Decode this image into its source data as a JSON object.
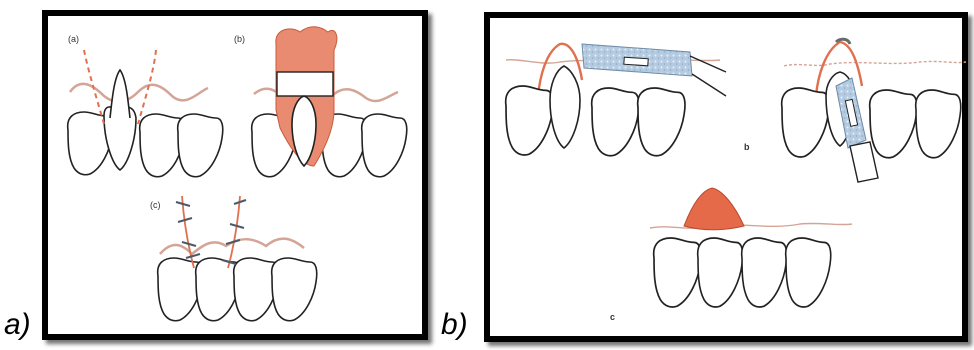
{
  "figure": {
    "caption_a": "a)",
    "caption_b": "b)"
  },
  "panel_a": {
    "label_a": "(a)",
    "label_b": "(b)",
    "label_c": "(c)"
  },
  "panel_b": {
    "label_b": "b",
    "label_c": "c"
  },
  "colors": {
    "tooth_outline": "#222222",
    "gingiva_line": "#d4a596",
    "tissue_fill": "#e46a4a",
    "incision_dash": "#e0704f",
    "instrument_blue": "#a9c2da",
    "suture": "#4a5a6a"
  }
}
